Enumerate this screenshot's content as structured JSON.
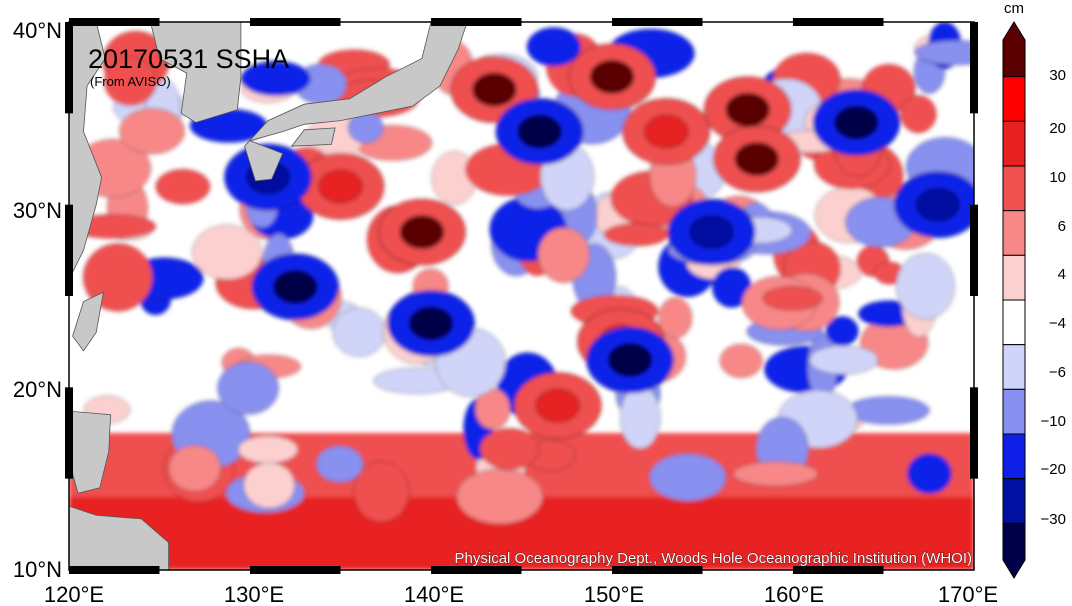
{
  "map": {
    "title": "20170531 SSHA",
    "source_note": "(From AVISO)",
    "credit": "Physical Oceanography Dept., Woods Hole Oceanographic Institution (WHOI)",
    "lon_labels": [
      "120°E",
      "130°E",
      "140°E",
      "150°E",
      "160°E",
      "170°E"
    ],
    "lat_labels": [
      "40°N",
      "30°N",
      "20°N",
      "10°N"
    ],
    "extent": {
      "lon": [
        120,
        170
      ],
      "lat": [
        10,
        40
      ]
    },
    "land_color": "#c8c8c8"
  },
  "colorbar": {
    "unit": "cm",
    "tick_labels": [
      "30",
      "20",
      "10",
      "6",
      "4",
      "−4",
      "−6",
      "−10",
      "−20",
      "−30"
    ],
    "bins": [
      {
        "range": "> 30",
        "color": "#5a0000"
      },
      {
        "range": "30",
        "color": "#ff0000"
      },
      {
        "range": "20–30",
        "color": "#e82020"
      },
      {
        "range": "10–20",
        "color": "#f05050"
      },
      {
        "range": "6–10",
        "color": "#f88888"
      },
      {
        "range": "4–6",
        "color": "#fdd0d0"
      },
      {
        "range": "-4–4",
        "color": "#ffffff"
      },
      {
        "range": "-6–-4",
        "color": "#d0d4f8"
      },
      {
        "range": "-10–-6",
        "color": "#8890f0"
      },
      {
        "range": "-20–-10",
        "color": "#1020e8"
      },
      {
        "range": "-30–-20",
        "color": "#0010a0"
      },
      {
        "range": "< -30",
        "color": "#000048"
      }
    ]
  },
  "features": {
    "warm_eddies": [
      {
        "lon": 143.5,
        "lat": 36.3,
        "level": "> 30"
      },
      {
        "lon": 150.0,
        "lat": 37.0,
        "level": "> 30"
      },
      {
        "lon": 157.5,
        "lat": 35.2,
        "level": "> 30"
      },
      {
        "lon": 158.0,
        "lat": 32.5,
        "level": "> 30"
      },
      {
        "lon": 153.0,
        "lat": 34.0,
        "level": "20–30"
      },
      {
        "lon": 139.5,
        "lat": 28.5,
        "level": "> 30"
      },
      {
        "lon": 135.0,
        "lat": 31.0,
        "level": "20–30"
      },
      {
        "lon": 150.5,
        "lat": 22.5,
        "level": "20–30"
      },
      {
        "lon": 147.0,
        "lat": 19.0,
        "level": "20–30"
      }
    ],
    "cold_eddies": [
      {
        "lon": 132.5,
        "lat": 25.5,
        "level": "< -30"
      },
      {
        "lon": 146.0,
        "lat": 34.0,
        "level": "< -30"
      },
      {
        "lon": 163.5,
        "lat": 34.5,
        "level": "< -30"
      },
      {
        "lon": 140.0,
        "lat": 23.5,
        "level": "< -30"
      },
      {
        "lon": 151.0,
        "lat": 21.5,
        "level": "< -30"
      },
      {
        "lon": 155.5,
        "lat": 28.5,
        "level": "-30–-20"
      },
      {
        "lon": 131.0,
        "lat": 31.5,
        "level": "-30–-20"
      },
      {
        "lon": 168.0,
        "lat": 30.0,
        "level": "-30–-20"
      }
    ]
  }
}
